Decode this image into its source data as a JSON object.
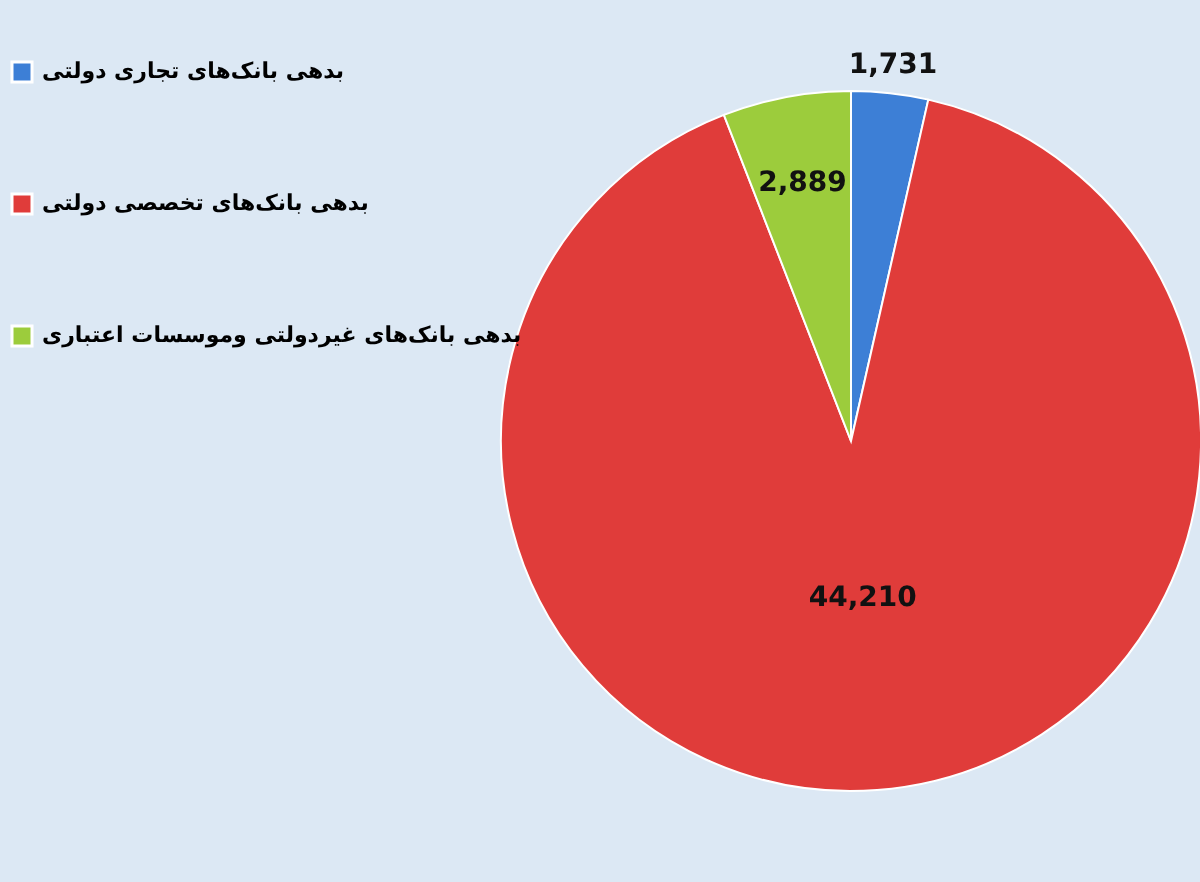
{
  "chart_data": {
    "type": "pie",
    "categories": [
      "بدهی بانک‌های تجاری دولتی",
      "بدهی بانک‌های تخصصی دولتی",
      "بدهی بانک‌های غیردولتی وموسسات اعتباری"
    ],
    "values": [
      1731,
      44210,
      2889
    ],
    "colors": [
      "#3d7fd6",
      "#e03c3a",
      "#9ccc3c"
    ],
    "value_labels": [
      "1,731",
      "44,210",
      "2,889"
    ],
    "legend": "left"
  }
}
